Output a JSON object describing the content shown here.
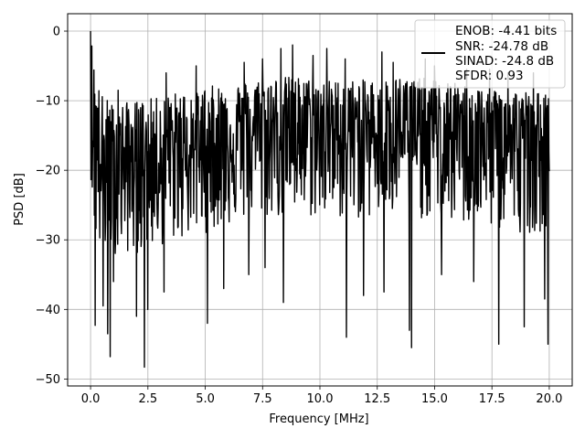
{
  "chart_data": {
    "type": "line",
    "title": "",
    "xlabel": "Frequency [MHz]",
    "ylabel": "PSD [dB]",
    "xlim": [
      -1,
      21
    ],
    "ylim": [
      -51,
      2.5
    ],
    "xticks": [
      0.0,
      2.5,
      5.0,
      7.5,
      10.0,
      12.5,
      15.0,
      17.5,
      20.0
    ],
    "xtick_labels": [
      "0.0",
      "2.5",
      "5.0",
      "7.5",
      "10.0",
      "12.5",
      "15.0",
      "17.5",
      "20.0"
    ],
    "yticks": [
      0,
      -10,
      -20,
      -30,
      -40,
      -50
    ],
    "ytick_labels": [
      "0",
      "−10",
      "−20",
      "−30",
      "−40",
      "−50"
    ],
    "grid": true,
    "legend_position": "top-right",
    "legend_lines": [
      "ENOB: -4.41 bits",
      "SNR: -24.78 dB",
      "SINAD: -24.8 dB",
      "SFDR: 0.93"
    ],
    "series": [
      {
        "color": "#000000",
        "envelope": {
          "x": [
            0.0,
            0.1,
            0.3,
            0.5,
            1.0,
            2.0,
            3.0,
            4.0,
            5.0,
            6.0,
            7.0,
            8.0,
            9.0,
            10.0,
            11.0,
            12.0,
            13.0,
            14.0,
            15.0,
            16.0,
            17.0,
            18.0,
            19.0,
            20.0
          ],
          "upper": [
            0.0,
            -3.0,
            -7.0,
            -9.0,
            -10.5,
            -10.0,
            -9.5,
            -8.5,
            -8.0,
            -7.5,
            -7.0,
            -6.5,
            -6.5,
            -7.0,
            -7.0,
            -7.0,
            -6.5,
            -6.5,
            -7.0,
            -7.5,
            -8.0,
            -8.0,
            -8.5,
            -9.0
          ],
          "mean": [
            0.0,
            -14.0,
            -17.5,
            -19.0,
            -19.0,
            -18.5,
            -18.0,
            -17.5,
            -16.5,
            -15.5,
            -15.0,
            -15.0,
            -14.5,
            -15.0,
            -15.0,
            -15.0,
            -14.5,
            -14.5,
            -15.0,
            -15.5,
            -16.0,
            -16.5,
            -17.0,
            -17.0
          ],
          "lower": [
            -20.0,
            -28.0,
            -32.0,
            -33.0,
            -32.0,
            -32.0,
            -31.0,
            -30.0,
            -29.0,
            -28.0,
            -27.0,
            -27.0,
            -27.0,
            -27.0,
            -27.0,
            -27.0,
            -27.0,
            -27.0,
            -27.0,
            -28.0,
            -28.0,
            -29.0,
            -29.0,
            -29.0
          ]
        },
        "points_count": 1100,
        "dips": [
          [
            0.2,
            -42.3
          ],
          [
            0.55,
            -39.5
          ],
          [
            0.75,
            -43.5
          ],
          [
            0.85,
            -46.8
          ],
          [
            1.0,
            -36.0
          ],
          [
            2.0,
            -41.0
          ],
          [
            2.35,
            -48.3
          ],
          [
            2.5,
            -40.0
          ],
          [
            3.2,
            -37.5
          ],
          [
            5.1,
            -42.0
          ],
          [
            5.8,
            -37.0
          ],
          [
            6.9,
            -35.0
          ],
          [
            7.6,
            -34.0
          ],
          [
            8.4,
            -39.0
          ],
          [
            11.15,
            -44.0
          ],
          [
            11.9,
            -38.0
          ],
          [
            12.8,
            -37.5
          ],
          [
            13.9,
            -43.0
          ],
          [
            14.0,
            -45.5
          ],
          [
            15.3,
            -35.0
          ],
          [
            16.7,
            -36.0
          ],
          [
            17.8,
            -45.0
          ],
          [
            18.9,
            -42.5
          ],
          [
            19.8,
            -38.5
          ],
          [
            19.95,
            -45.0
          ]
        ],
        "peaks": [
          [
            0.0,
            0.0
          ],
          [
            1.2,
            -8.5
          ],
          [
            3.3,
            -6.0
          ],
          [
            4.6,
            -5.0
          ],
          [
            6.7,
            -4.5
          ],
          [
            7.5,
            -4.0
          ],
          [
            8.3,
            -2.5
          ],
          [
            8.8,
            -2.0
          ],
          [
            9.7,
            -3.5
          ],
          [
            10.3,
            -2.5
          ],
          [
            11.1,
            -4.0
          ],
          [
            12.7,
            -3.0
          ],
          [
            13.2,
            -4.5
          ],
          [
            14.6,
            -4.0
          ],
          [
            15.0,
            -5.0
          ],
          [
            16.4,
            -5.5
          ],
          [
            17.4,
            -5.5
          ],
          [
            18.2,
            -6.0
          ],
          [
            19.3,
            -6.0
          ]
        ]
      }
    ]
  }
}
